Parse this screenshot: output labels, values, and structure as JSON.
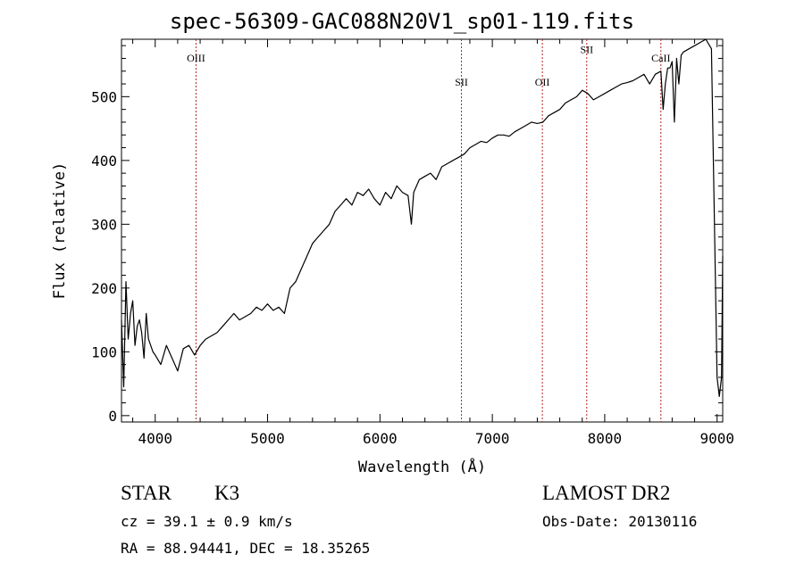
{
  "chart_data": {
    "type": "line",
    "title": "spec-56309-GAC088N20V1_sp01-119.fits",
    "xlabel": "Wavelength (Å)",
    "ylabel": "Flux (relative)",
    "xlim": [
      3700,
      9050
    ],
    "ylim": [
      -10,
      590
    ],
    "xticks": [
      4000,
      5000,
      6000,
      7000,
      8000,
      9000
    ],
    "yticks": [
      0,
      100,
      200,
      300,
      400,
      500
    ],
    "grid": false,
    "colors": {
      "spectrum": "#000000",
      "lines": "#b22222"
    },
    "series": [
      {
        "x": [
          3700,
          3720,
          3740,
          3760,
          3780,
          3800,
          3820,
          3840,
          3860,
          3880,
          3900,
          3920,
          3940,
          3960,
          3980,
          4000,
          4050,
          4100,
          4150,
          4200,
          4250,
          4300,
          4350,
          4400,
          4450,
          4500,
          4550,
          4600,
          4650,
          4700,
          4750,
          4800,
          4850,
          4900,
          4950,
          5000,
          5050,
          5100,
          5150,
          5200,
          5250,
          5300,
          5350,
          5400,
          5450,
          5500,
          5550,
          5600,
          5650,
          5700,
          5750,
          5800,
          5850,
          5900,
          5950,
          6000,
          6050,
          6100,
          6150,
          6200,
          6250,
          6280,
          6300,
          6350,
          6400,
          6450,
          6500,
          6550,
          6600,
          6650,
          6700,
          6750,
          6800,
          6850,
          6900,
          6950,
          7000,
          7050,
          7100,
          7150,
          7200,
          7250,
          7300,
          7350,
          7400,
          7450,
          7500,
          7550,
          7600,
          7650,
          7700,
          7750,
          7800,
          7850,
          7900,
          7950,
          8000,
          8050,
          8100,
          8150,
          8200,
          8250,
          8300,
          8350,
          8400,
          8450,
          8500,
          8520,
          8540,
          8560,
          8580,
          8600,
          8620,
          8640,
          8660,
          8680,
          8700,
          8750,
          8800,
          8850,
          8900,
          8950,
          9000,
          9020,
          9040,
          9050
        ],
        "y": [
          150,
          45,
          210,
          120,
          160,
          180,
          110,
          140,
          150,
          130,
          90,
          160,
          120,
          110,
          100,
          95,
          80,
          110,
          90,
          70,
          105,
          110,
          95,
          110,
          120,
          125,
          130,
          140,
          150,
          160,
          150,
          155,
          160,
          170,
          165,
          175,
          165,
          170,
          160,
          200,
          210,
          230,
          250,
          270,
          280,
          290,
          300,
          320,
          330,
          340,
          330,
          350,
          345,
          355,
          340,
          330,
          350,
          340,
          360,
          350,
          345,
          300,
          350,
          370,
          375,
          380,
          370,
          390,
          395,
          400,
          405,
          410,
          420,
          425,
          430,
          428,
          435,
          440,
          440,
          438,
          445,
          450,
          455,
          460,
          458,
          460,
          470,
          475,
          480,
          490,
          495,
          500,
          510,
          505,
          495,
          500,
          505,
          510,
          515,
          520,
          522,
          525,
          530,
          535,
          520,
          535,
          540,
          480,
          520,
          545,
          545,
          555,
          460,
          560,
          520,
          565,
          570,
          575,
          580,
          585,
          590,
          575,
          60,
          30,
          60,
          250
        ]
      }
    ],
    "annotations": [
      {
        "label": "OIII",
        "x": 4363,
        "y_text": 555
      },
      {
        "label": "SII",
        "x": 6725,
        "y_text": 517
      },
      {
        "label": "OII",
        "x": 7445,
        "y_text": 517
      },
      {
        "label": "SII",
        "x": 7840,
        "y_text": 568
      },
      {
        "label": "CaII",
        "x": 8500,
        "y_text": 555
      }
    ]
  },
  "info": {
    "object_class": "STAR",
    "subclass": "K3",
    "survey": "LAMOST DR2",
    "cz": "cz = 39.1 ± 0.9 km/s",
    "obs_date": "Obs-Date: 20130116",
    "coords": "RA =  88.94441, DEC =  18.35265"
  }
}
